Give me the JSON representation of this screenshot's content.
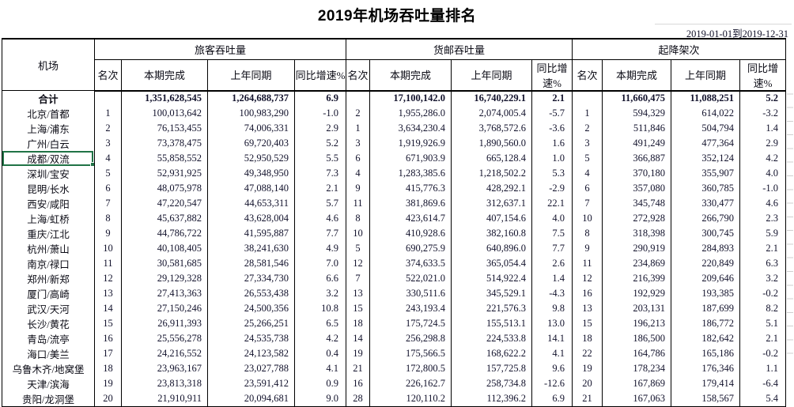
{
  "page": {
    "title": "2019年机场吞吐量排名",
    "date_range": "2019-01-01到2019-12-31"
  },
  "colors": {
    "selection_green": "#217346",
    "table_border": "#000000",
    "gridline_gray": "#cfcfcf"
  },
  "table": {
    "airport_header": "机场",
    "groups": [
      {
        "label": "旅客吞吐量"
      },
      {
        "label": "货邮吞吐量"
      },
      {
        "label": "起降架次"
      }
    ],
    "sub_headers": [
      "名次",
      "本期完成",
      "上年同期",
      "同比增速%"
    ],
    "selected_airport": "成都/双流",
    "total_row": {
      "name": "合计",
      "cells": [
        "",
        "1,351,628,545",
        "1,264,688,737",
        "6.9",
        "",
        "17,100,142.0",
        "16,740,229.1",
        "2.1",
        "",
        "11,660,475",
        "11,088,251",
        "5.2"
      ]
    },
    "rows": [
      {
        "name": "北京/首都",
        "cells": [
          "1",
          "100,013,642",
          "100,983,290",
          "-1.0",
          "2",
          "1,955,286.0",
          "2,074,005.4",
          "-5.7",
          "1",
          "594,329",
          "614,022",
          "-3.2"
        ]
      },
      {
        "name": "上海/浦东",
        "cells": [
          "2",
          "76,153,455",
          "74,006,331",
          "2.9",
          "1",
          "3,634,230.4",
          "3,768,572.6",
          "-3.6",
          "2",
          "511,846",
          "504,794",
          "1.4"
        ]
      },
      {
        "name": "广州/白云",
        "cells": [
          "3",
          "73,378,475",
          "69,720,403",
          "5.2",
          "3",
          "1,919,926.9",
          "1,890,560.0",
          "1.6",
          "3",
          "491,249",
          "477,364",
          "2.9"
        ]
      },
      {
        "name": "成都/双流",
        "cells": [
          "4",
          "55,858,552",
          "52,950,529",
          "5.5",
          "6",
          "671,903.9",
          "665,128.4",
          "1.0",
          "5",
          "366,887",
          "352,124",
          "4.2"
        ]
      },
      {
        "name": "深圳/宝安",
        "cells": [
          "5",
          "52,931,925",
          "49,348,950",
          "7.3",
          "4",
          "1,283,385.6",
          "1,218,502.2",
          "5.3",
          "4",
          "370,180",
          "355,907",
          "4.0"
        ]
      },
      {
        "name": "昆明/长水",
        "cells": [
          "6",
          "48,075,978",
          "47,088,140",
          "2.1",
          "9",
          "415,776.3",
          "428,292.1",
          "-2.9",
          "6",
          "357,080",
          "360,785",
          "-1.0"
        ]
      },
      {
        "name": "西安/咸阳",
        "cells": [
          "7",
          "47,220,547",
          "44,653,311",
          "5.7",
          "11",
          "381,869.6",
          "312,637.1",
          "22.1",
          "7",
          "345,748",
          "330,477",
          "4.6"
        ]
      },
      {
        "name": "上海/虹桥",
        "cells": [
          "8",
          "45,637,882",
          "43,628,004",
          "4.6",
          "8",
          "423,614.7",
          "407,154.6",
          "4.0",
          "10",
          "272,928",
          "266,790",
          "2.3"
        ]
      },
      {
        "name": "重庆/江北",
        "cells": [
          "9",
          "44,786,722",
          "41,595,887",
          "7.7",
          "10",
          "410,928.6",
          "382,160.8",
          "7.5",
          "8",
          "318,398",
          "300,745",
          "5.9"
        ]
      },
      {
        "name": "杭州/萧山",
        "cells": [
          "10",
          "40,108,405",
          "38,241,630",
          "4.9",
          "5",
          "690,275.9",
          "640,896.0",
          "7.7",
          "9",
          "290,919",
          "284,893",
          "2.1"
        ]
      },
      {
        "name": "南京/禄口",
        "cells": [
          "11",
          "30,581,685",
          "28,581,546",
          "7.0",
          "12",
          "374,633.5",
          "365,054.4",
          "2.6",
          "11",
          "234,869",
          "220,849",
          "6.3"
        ]
      },
      {
        "name": "郑州/新郑",
        "cells": [
          "12",
          "29,129,328",
          "27,334,730",
          "6.6",
          "7",
          "522,021.0",
          "514,922.4",
          "1.4",
          "12",
          "216,399",
          "209,646",
          "3.2"
        ]
      },
      {
        "name": "厦门/高崎",
        "cells": [
          "13",
          "27,413,363",
          "26,553,438",
          "3.2",
          "13",
          "330,511.6",
          "345,529.1",
          "-4.3",
          "16",
          "192,929",
          "193,385",
          "-0.2"
        ]
      },
      {
        "name": "武汉/天河",
        "cells": [
          "14",
          "27,150,246",
          "24,500,356",
          "10.8",
          "15",
          "243,193.4",
          "221,576.3",
          "9.8",
          "13",
          "203,131",
          "187,699",
          "8.2"
        ]
      },
      {
        "name": "长沙/黄花",
        "cells": [
          "15",
          "26,911,393",
          "25,266,251",
          "6.5",
          "18",
          "175,724.5",
          "155,513.1",
          "13.0",
          "15",
          "196,213",
          "186,772",
          "5.1"
        ]
      },
      {
        "name": "青岛/流亭",
        "cells": [
          "16",
          "25,556,278",
          "24,535,738",
          "4.2",
          "14",
          "256,298.8",
          "224,533.8",
          "14.1",
          "18",
          "186,500",
          "182,642",
          "2.1"
        ]
      },
      {
        "name": "海口/美兰",
        "cells": [
          "17",
          "24,216,552",
          "24,123,582",
          "0.4",
          "19",
          "175,566.5",
          "168,622.2",
          "4.1",
          "22",
          "164,786",
          "165,186",
          "-0.2"
        ]
      },
      {
        "name": "乌鲁木齐/地窝堡",
        "cells": [
          "18",
          "23,963,167",
          "23,027,788",
          "4.1",
          "21",
          "172,800.5",
          "157,725.8",
          "9.6",
          "19",
          "178,234",
          "176,346",
          "1.1"
        ]
      },
      {
        "name": "天津/滨海",
        "cells": [
          "19",
          "23,813,318",
          "23,591,412",
          "0.9",
          "16",
          "226,162.7",
          "258,734.8",
          "-12.6",
          "20",
          "167,869",
          "179,414",
          "-6.4"
        ]
      },
      {
        "name": "贵阳/龙洞堡",
        "cells": [
          "20",
          "21,910,911",
          "20,094,681",
          "9.0",
          "28",
          "120,110.2",
          "112,396.2",
          "6.9",
          "21",
          "167,063",
          "158,567",
          "5.4"
        ]
      }
    ]
  }
}
